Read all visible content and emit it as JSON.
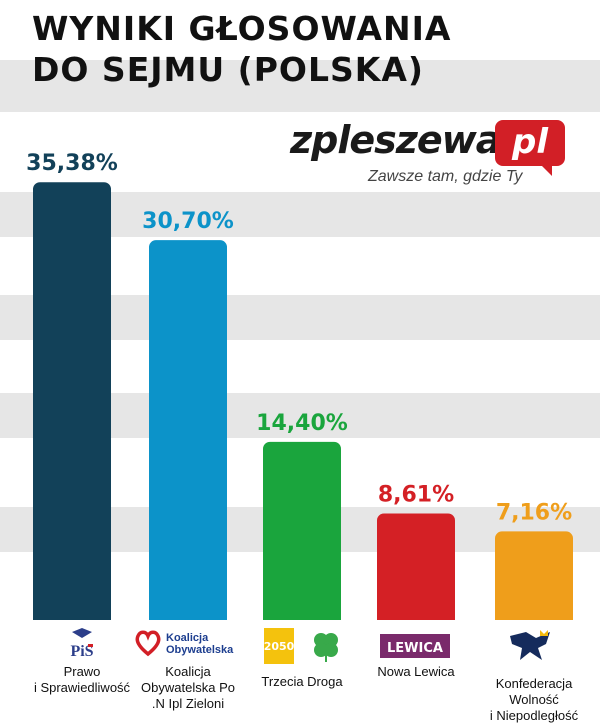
{
  "title": {
    "line1": "WYNIKI GŁOSOWANIA",
    "line2": "DO SEJMU (POLSKA)"
  },
  "brand": {
    "name": "zpleszewa.",
    "tld": "pl",
    "tagline": "Zawsze tam, gdzie Ty",
    "accent": "#d21f26"
  },
  "logos": {
    "pis": "PiS",
    "ko_line1": "Koalicja",
    "ko_line2": "Obywatelska",
    "td_badge": "2050",
    "lewica": "LEWICA"
  },
  "chart_data": {
    "type": "bar",
    "categories": [
      "Prawo\ni Sprawiedliwość",
      "Koalicja\nObywatelska Po\n.N Ipl Zieloni",
      "Trzecia Droga",
      "Nowa Lewica",
      "Konfederacja\nWolność\ni Niepodległość"
    ],
    "values": [
      35.38,
      30.7,
      14.4,
      8.61,
      7.16
    ],
    "value_labels": [
      "35,38%",
      "30,70%",
      "14,40%",
      "8,61%",
      "7,16%"
    ],
    "colors": [
      "#124159",
      "#0c93c9",
      "#1aa53d",
      "#d42025",
      "#ef9e1b"
    ],
    "label_colors": [
      "#124159",
      "#0c93c9",
      "#1aa53d",
      "#d42025",
      "#ef9e1b"
    ],
    "ylim": [
      0,
      37.5
    ],
    "grid": "horizontal-bands"
  }
}
